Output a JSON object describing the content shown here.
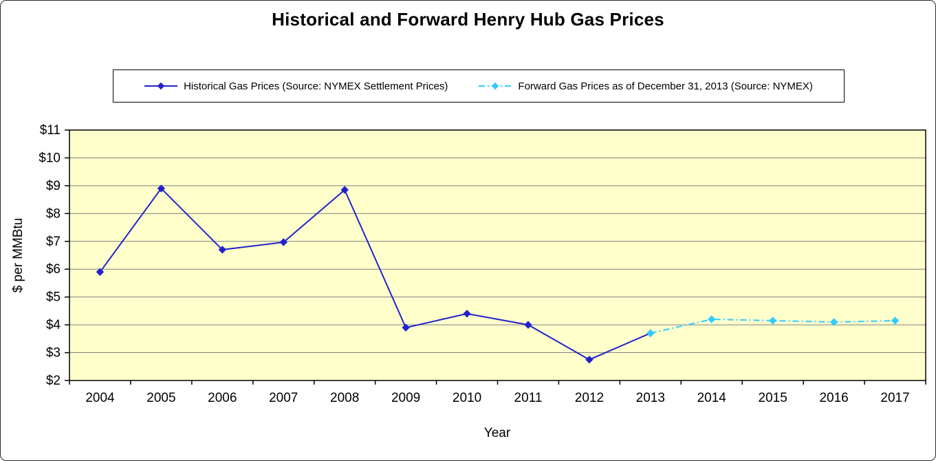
{
  "chart_data": {
    "type": "line",
    "title": "Historical and Forward Henry Hub Gas Prices",
    "xlabel": "Year",
    "ylabel": "$ per MMBtu",
    "ylim": [
      2,
      11
    ],
    "grid": "horizontal",
    "legend_position": "top-center",
    "plot_bg": "#FFFFCC",
    "gridline_color": "#808080",
    "categories": [
      "2004",
      "2005",
      "2006",
      "2007",
      "2008",
      "2009",
      "2010",
      "2011",
      "2012",
      "2013",
      "2014",
      "2015",
      "2016",
      "2017"
    ],
    "y_ticks": [
      {
        "value": 2,
        "label": "$2"
      },
      {
        "value": 3,
        "label": "$3"
      },
      {
        "value": 4,
        "label": "$4"
      },
      {
        "value": 5,
        "label": "$5"
      },
      {
        "value": 6,
        "label": "$6"
      },
      {
        "value": 7,
        "label": "$7"
      },
      {
        "value": 8,
        "label": "$8"
      },
      {
        "value": 9,
        "label": "$9"
      },
      {
        "value": 10,
        "label": "$10"
      },
      {
        "value": 11,
        "label": "$11"
      }
    ],
    "series": [
      {
        "name": "Historical Gas Prices (Source: NYMEX Settlement Prices)",
        "color": "#2222CC",
        "line_style": "solid",
        "marker": "diamond",
        "values": [
          5.9,
          8.9,
          6.7,
          6.97,
          8.85,
          3.9,
          4.4,
          4.0,
          2.75,
          3.7,
          null,
          null,
          null,
          null
        ]
      },
      {
        "name": "Forward Gas Prices as of December 31, 2013 (Source: NYMEX)",
        "color": "#33CCFF",
        "line_style": "dash-dot",
        "marker": "diamond",
        "values": [
          null,
          null,
          null,
          null,
          null,
          null,
          null,
          null,
          null,
          3.7,
          4.2,
          4.15,
          4.1,
          4.15
        ]
      }
    ]
  }
}
